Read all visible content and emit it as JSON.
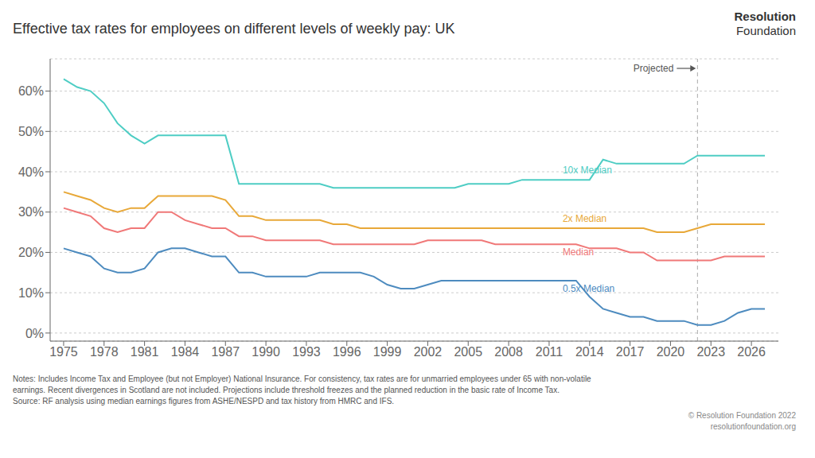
{
  "chart_data": {
    "type": "line",
    "title": "Effective tax rates for employees on different levels of weekly pay: UK",
    "x": [
      1975,
      1976,
      1977,
      1978,
      1979,
      1980,
      1981,
      1982,
      1983,
      1984,
      1985,
      1986,
      1987,
      1988,
      1989,
      1990,
      1991,
      1992,
      1993,
      1994,
      1995,
      1996,
      1997,
      1998,
      1999,
      2000,
      2001,
      2002,
      2003,
      2004,
      2005,
      2006,
      2007,
      2008,
      2009,
      2010,
      2011,
      2012,
      2013,
      2014,
      2015,
      2016,
      2017,
      2018,
      2019,
      2020,
      2021,
      2022,
      2023,
      2024,
      2025,
      2026,
      2027
    ],
    "series": [
      {
        "name": "10x Median",
        "color": "#4ecdc4",
        "values": [
          63,
          61,
          60,
          57,
          52,
          49,
          47,
          49,
          49,
          49,
          49,
          49,
          49,
          37,
          37,
          37,
          37,
          37,
          37,
          37,
          36,
          36,
          36,
          36,
          36,
          36,
          36,
          36,
          36,
          36,
          37,
          37,
          37,
          37,
          38,
          38,
          38,
          38,
          38,
          38,
          43,
          42,
          42,
          42,
          42,
          42,
          42,
          44,
          44,
          44,
          44,
          44,
          44
        ]
      },
      {
        "name": "2x Median",
        "color": "#e8a838",
        "values": [
          35,
          34,
          33,
          31,
          30,
          31,
          31,
          34,
          34,
          34,
          34,
          34,
          33,
          29,
          29,
          28,
          28,
          28,
          28,
          28,
          27,
          27,
          26,
          26,
          26,
          26,
          26,
          26,
          26,
          26,
          26,
          26,
          26,
          26,
          26,
          26,
          26,
          26,
          26,
          26,
          26,
          26,
          26,
          26,
          25,
          25,
          25,
          26,
          27,
          27,
          27,
          27,
          27
        ]
      },
      {
        "name": "Median",
        "color": "#f07878",
        "values": [
          31,
          30,
          29,
          26,
          25,
          26,
          26,
          30,
          30,
          28,
          27,
          26,
          26,
          24,
          24,
          23,
          23,
          23,
          23,
          23,
          22,
          22,
          22,
          22,
          22,
          22,
          22,
          23,
          23,
          23,
          23,
          23,
          22,
          22,
          22,
          22,
          22,
          22,
          22,
          21,
          21,
          21,
          20,
          20,
          18,
          18,
          18,
          18,
          18,
          19,
          19,
          19,
          19
        ]
      },
      {
        "name": "0.5x Median",
        "color": "#4d8bbf",
        "values": [
          21,
          20,
          19,
          16,
          15,
          15,
          16,
          20,
          21,
          21,
          20,
          19,
          19,
          15,
          15,
          14,
          14,
          14,
          14,
          15,
          15,
          15,
          15,
          14,
          12,
          11,
          11,
          12,
          13,
          13,
          13,
          13,
          13,
          13,
          13,
          13,
          13,
          13,
          13,
          9,
          6,
          5,
          4,
          4,
          3,
          3,
          3,
          2,
          2,
          3,
          5,
          6,
          6
        ]
      }
    ],
    "xlim": [
      1974,
      2028
    ],
    "xticks": [
      1975,
      1978,
      1981,
      1984,
      1987,
      1990,
      1993,
      1996,
      1999,
      2002,
      2005,
      2008,
      2011,
      2014,
      2017,
      2020,
      2023,
      2026
    ],
    "ylim": [
      -2,
      68
    ],
    "yticks": [
      {
        "value": 0,
        "label": "0%"
      },
      {
        "value": 10,
        "label": "10%"
      },
      {
        "value": 20,
        "label": "20%"
      },
      {
        "value": 30,
        "label": "30%"
      },
      {
        "value": 40,
        "label": "40%"
      },
      {
        "value": 50,
        "label": "50%"
      },
      {
        "value": 60,
        "label": "60%"
      }
    ],
    "grid": true,
    "annotations": [
      {
        "type": "vline",
        "x": 2022,
        "text": "Projected"
      }
    ],
    "notes": "Notes: Includes Income Tax and Employee (but not Employer) National Insurance. For consistency, tax rates are for unmarried employees under 65 with non-volatile\nearnings. Recent divergences in Scotland are not included. Projections include threshold freezes and the planned reduction in the basic rate of Income Tax.\nSource: RF analysis using median earnings figures from ASHE/NESPD and tax history from HMRC and IFS.",
    "credits": [
      "© Resolution Foundation 2022",
      "resolutionfoundation.org"
    ],
    "logo": [
      "Resolution",
      "Foundation"
    ]
  }
}
